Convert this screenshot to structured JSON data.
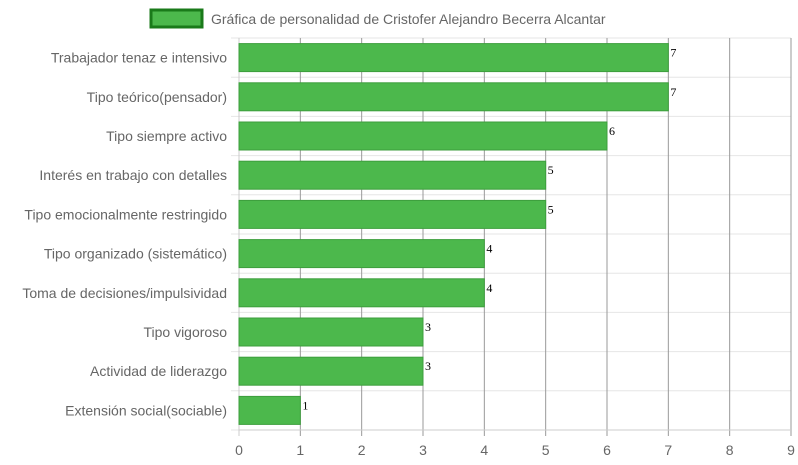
{
  "chart_data": {
    "type": "bar",
    "orientation": "horizontal",
    "title": "",
    "legend": {
      "position": "top-center",
      "entries": [
        "Gráfica de personalidad de Cristofer Alejandro Becerra Alcantar"
      ]
    },
    "categories": [
      "Trabajador tenaz e intensivo",
      "Tipo teórico(pensador)",
      "Tipo siempre activo",
      "Interés en trabajo con detalles",
      "Tipo emocionalmente restringido",
      "Tipo organizado (sistemático)",
      "Toma de decisiones/impulsividad",
      "Tipo vigoroso",
      "Actividad de liderazgo",
      "Extensión social(sociable)"
    ],
    "series": [
      {
        "name": "Gráfica de personalidad de Cristofer Alejandro Becerra Alcantar",
        "values": [
          7,
          7,
          6,
          5,
          5,
          4,
          4,
          3,
          3,
          1
        ]
      }
    ],
    "data_labels": [
      "7",
      "7",
      "6",
      "5",
      "5",
      "4",
      "4",
      "3",
      "3",
      "1"
    ],
    "xlim": [
      0,
      9
    ],
    "xticks": [
      "0",
      "1",
      "2",
      "3",
      "4",
      "5",
      "6",
      "7",
      "8",
      "9"
    ],
    "xlabel": "",
    "ylabel": "",
    "grid": true,
    "colors": {
      "bar_fill": "#4cb84c",
      "bar_border": "#3d9e3d",
      "legend_fill": "#4cb84c",
      "legend_border": "#1a7a1a",
      "grid": "#e6e6e6",
      "grid_value": "#999999",
      "text": "#666666",
      "value_text": "#000000"
    }
  }
}
